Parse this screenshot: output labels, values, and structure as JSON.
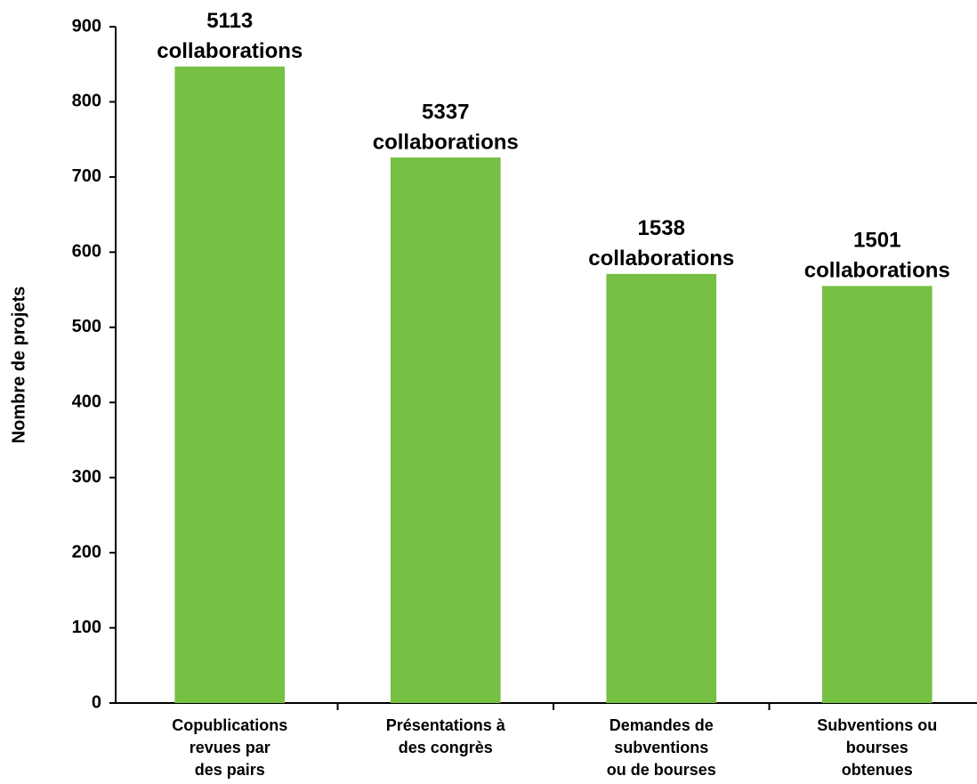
{
  "chart_data": {
    "type": "bar",
    "y_label": "Nombre de projets",
    "categories": [
      [
        "Copublications",
        "revues par",
        "des pairs"
      ],
      [
        "Présentations à",
        "des congrès"
      ],
      [
        "Demandes de",
        "subventions",
        "ou de bourses"
      ],
      [
        "Subventions ou",
        "bourses",
        "obtenues"
      ]
    ],
    "values": [
      847,
      726,
      571,
      555
    ],
    "annotations": [
      [
        "5113",
        "collaborations"
      ],
      [
        "5337",
        "collaborations"
      ],
      [
        "1538",
        "collaborations"
      ],
      [
        "1501",
        "collaborations"
      ]
    ],
    "color": "#76c043",
    "ylim": [
      0,
      900
    ],
    "yticks": [
      0,
      100,
      200,
      300,
      400,
      500,
      600,
      700,
      800,
      900
    ],
    "grid": false
  }
}
